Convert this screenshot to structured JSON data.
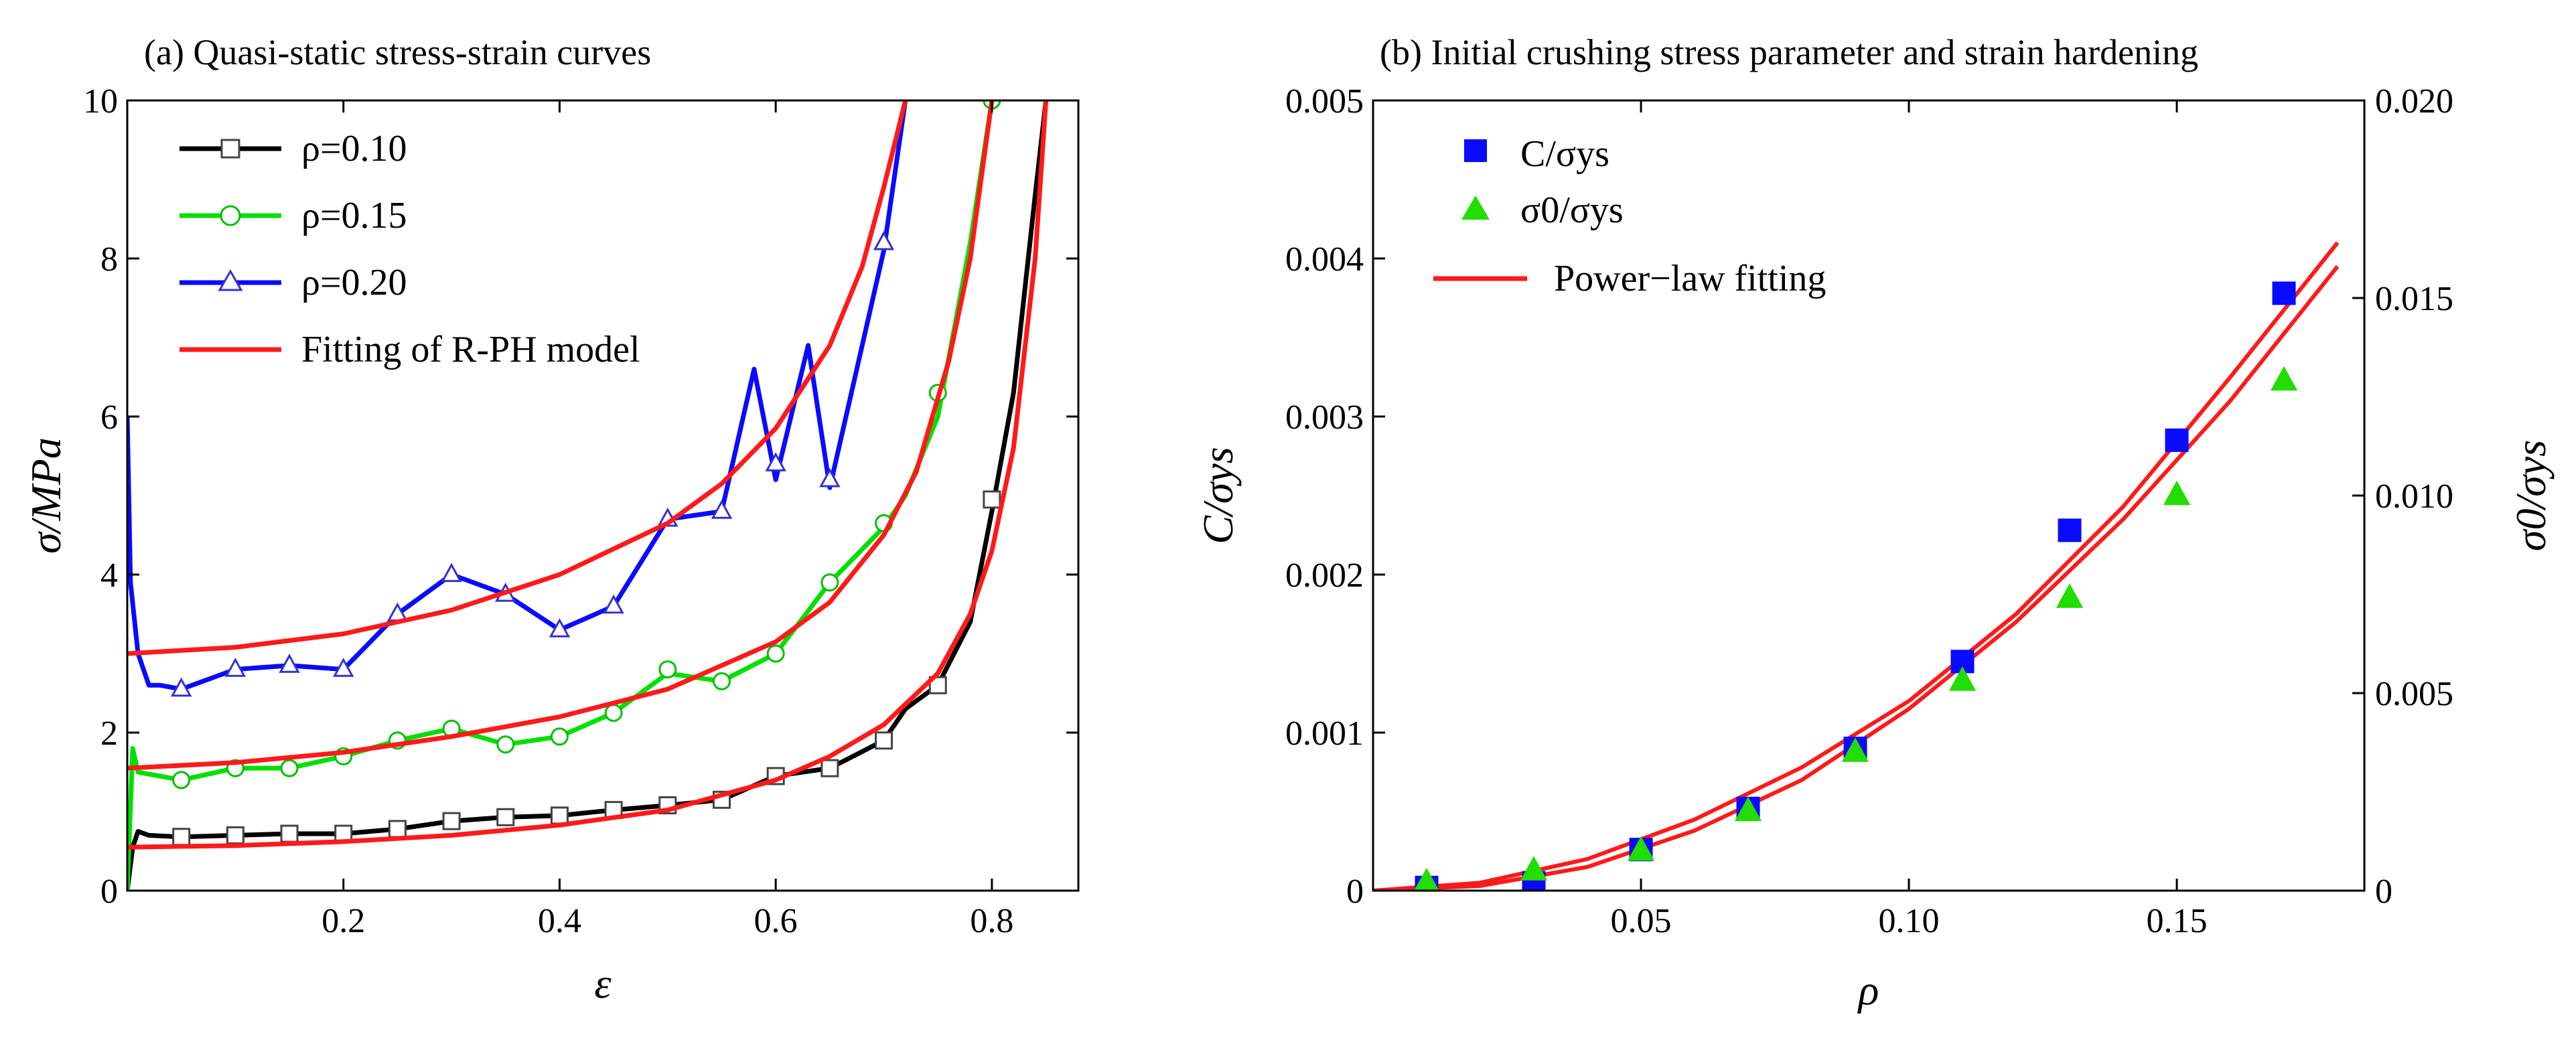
{
  "chart_data": [
    {
      "id": "a",
      "type": "line",
      "title": "(a) Quasi-static stress-strain curves",
      "xlabel": "ε",
      "ylabel": "σ/MPa",
      "xlim": [
        0,
        0.88
      ],
      "ylim": [
        0,
        10
      ],
      "xticks": [
        {
          "value": 0.2,
          "label": "0.2"
        },
        {
          "value": 0.4,
          "label": "0.4"
        },
        {
          "value": 0.6,
          "label": "0.6"
        },
        {
          "value": 0.8,
          "label": "0.8"
        }
      ],
      "yticks": [
        {
          "value": 0,
          "label": "0"
        },
        {
          "value": 2,
          "label": "2"
        },
        {
          "value": 4,
          "label": "4"
        },
        {
          "value": 6,
          "label": "6"
        },
        {
          "value": 8,
          "label": "8"
        },
        {
          "value": 10,
          "label": "10"
        }
      ],
      "legend_position": "top-left",
      "series": [
        {
          "name": "ρ=0.10",
          "color": "#000000",
          "marker": "square",
          "x": [
            0.0,
            0.005,
            0.01,
            0.02,
            0.05,
            0.1,
            0.15,
            0.2,
            0.25,
            0.3,
            0.35,
            0.4,
            0.45,
            0.5,
            0.55,
            0.6,
            0.65,
            0.7,
            0.72,
            0.75,
            0.78,
            0.8,
            0.82,
            0.84,
            0.85
          ],
          "y": [
            0.0,
            0.55,
            0.75,
            0.7,
            0.68,
            0.7,
            0.72,
            0.72,
            0.78,
            0.88,
            0.93,
            0.95,
            1.02,
            1.08,
            1.15,
            1.45,
            1.55,
            1.9,
            2.3,
            2.6,
            3.4,
            4.8,
            6.3,
            8.8,
            10.0
          ],
          "markers_x": [
            0.05,
            0.1,
            0.15,
            0.2,
            0.25,
            0.3,
            0.35,
            0.4,
            0.45,
            0.5,
            0.55,
            0.6,
            0.65,
            0.7,
            0.75,
            0.8
          ],
          "markers_y": [
            0.68,
            0.7,
            0.72,
            0.72,
            0.78,
            0.88,
            0.93,
            0.95,
            1.02,
            1.08,
            1.15,
            1.45,
            1.55,
            1.9,
            2.6,
            4.95
          ]
        },
        {
          "name": "ρ=0.15",
          "color": "#00e000",
          "marker": "circle",
          "x": [
            0.0,
            0.005,
            0.01,
            0.03,
            0.05,
            0.1,
            0.15,
            0.2,
            0.25,
            0.3,
            0.35,
            0.4,
            0.45,
            0.5,
            0.55,
            0.6,
            0.65,
            0.7,
            0.72,
            0.75,
            0.78,
            0.8
          ],
          "y": [
            0.0,
            1.8,
            1.5,
            1.45,
            1.4,
            1.55,
            1.55,
            1.7,
            1.9,
            2.05,
            1.85,
            1.95,
            2.25,
            2.75,
            2.65,
            3.0,
            3.9,
            4.6,
            5.0,
            6.0,
            8.2,
            10.0
          ],
          "markers_x": [
            0.05,
            0.1,
            0.15,
            0.2,
            0.25,
            0.3,
            0.35,
            0.4,
            0.45,
            0.5,
            0.55,
            0.6,
            0.65,
            0.7,
            0.75,
            0.8
          ],
          "markers_y": [
            1.4,
            1.55,
            1.55,
            1.7,
            1.9,
            2.05,
            1.85,
            1.95,
            2.25,
            2.8,
            2.65,
            3.0,
            3.9,
            4.65,
            6.3,
            10.0
          ]
        },
        {
          "name": "ρ=0.20",
          "color": "#0a0aff",
          "marker": "triangle",
          "x": [
            0.0,
            0.003,
            0.01,
            0.02,
            0.03,
            0.05,
            0.1,
            0.15,
            0.2,
            0.25,
            0.3,
            0.35,
            0.4,
            0.45,
            0.5,
            0.55,
            0.58,
            0.6,
            0.63,
            0.65,
            0.7,
            0.72
          ],
          "y": [
            6.0,
            3.9,
            3.0,
            2.6,
            2.6,
            2.55,
            2.8,
            2.85,
            2.8,
            3.5,
            4.0,
            3.75,
            3.3,
            3.6,
            4.7,
            4.8,
            6.6,
            5.2,
            6.9,
            5.1,
            8.1,
            10.0
          ],
          "markers_x": [
            0.05,
            0.1,
            0.15,
            0.2,
            0.25,
            0.3,
            0.35,
            0.4,
            0.45,
            0.5,
            0.55,
            0.6,
            0.65,
            0.7
          ],
          "markers_y": [
            2.55,
            2.8,
            2.85,
            2.8,
            3.5,
            4.0,
            3.75,
            3.3,
            3.6,
            4.7,
            4.8,
            5.4,
            5.2,
            8.2
          ]
        },
        {
          "name": "Fitting of R-PH model",
          "color": "#ff1a1a",
          "marker": "none",
          "fits": [
            {
              "x": [
                0.0,
                0.1,
                0.2,
                0.3,
                0.4,
                0.5,
                0.6,
                0.65,
                0.7,
                0.75,
                0.78,
                0.8,
                0.82,
                0.84,
                0.85
              ],
              "y": [
                0.55,
                0.57,
                0.62,
                0.7,
                0.83,
                1.02,
                1.4,
                1.7,
                2.1,
                2.75,
                3.5,
                4.3,
                5.6,
                8.0,
                10.0
              ]
            },
            {
              "x": [
                0.0,
                0.1,
                0.2,
                0.3,
                0.4,
                0.5,
                0.6,
                0.65,
                0.7,
                0.73,
                0.76,
                0.78,
                0.8
              ],
              "y": [
                1.55,
                1.62,
                1.75,
                1.95,
                2.2,
                2.55,
                3.15,
                3.65,
                4.5,
                5.3,
                6.7,
                8.0,
                10.0
              ]
            },
            {
              "x": [
                0.0,
                0.1,
                0.2,
                0.3,
                0.4,
                0.5,
                0.55,
                0.6,
                0.65,
                0.68,
                0.7,
                0.72
              ],
              "y": [
                3.0,
                3.08,
                3.25,
                3.55,
                4.0,
                4.65,
                5.15,
                5.85,
                6.9,
                7.9,
                8.9,
                10.0
              ]
            }
          ]
        }
      ]
    },
    {
      "id": "b",
      "type": "scatter",
      "title": "(b) Initial crushing stress parameter and strain hardening",
      "xlabel": "ρ",
      "ylabel_left": "C/σys",
      "ylabel_right": "σ0/σys",
      "xlim": [
        0,
        0.185
      ],
      "ylim_left": [
        0,
        0.005
      ],
      "ylim_right": [
        0,
        0.02
      ],
      "xticks": [
        {
          "value": 0.05,
          "label": "0.05"
        },
        {
          "value": 0.1,
          "label": "0.10"
        },
        {
          "value": 0.15,
          "label": "0.15"
        }
      ],
      "yticks_left": [
        {
          "value": 0,
          "label": "0"
        },
        {
          "value": 0.001,
          "label": "0.001"
        },
        {
          "value": 0.002,
          "label": "0.002"
        },
        {
          "value": 0.003,
          "label": "0.003"
        },
        {
          "value": 0.004,
          "label": "0.004"
        },
        {
          "value": 0.005,
          "label": "0.005"
        }
      ],
      "yticks_right": [
        {
          "value": 0,
          "label": "0"
        },
        {
          "value": 0.005,
          "label": "0.005"
        },
        {
          "value": 0.01,
          "label": "0.010"
        },
        {
          "value": 0.015,
          "label": "0.015"
        },
        {
          "value": 0.02,
          "label": "0.020"
        }
      ],
      "legend_position": "top-left",
      "series": [
        {
          "name": "C/σys",
          "color": "#0a0aff",
          "marker": "square",
          "axis": "left",
          "x": [
            0.01,
            0.03,
            0.05,
            0.07,
            0.09,
            0.11,
            0.13,
            0.15,
            0.17
          ],
          "y": [
            2e-05,
            5e-05,
            0.00026,
            0.00052,
            0.0009,
            0.00145,
            0.00228,
            0.00285,
            0.00378
          ]
        },
        {
          "name": "σ0/σys",
          "color": "#22dd00",
          "marker": "triangle",
          "axis": "right",
          "x": [
            0.01,
            0.03,
            0.05,
            0.07,
            0.09,
            0.11,
            0.13,
            0.15,
            0.17
          ],
          "y": [
            0.0002,
            0.0005,
            0.001,
            0.002,
            0.0035,
            0.0053,
            0.0074,
            0.01,
            0.0129
          ]
        },
        {
          "name": "Power−law fitting",
          "color": "#ff1a1a",
          "marker": "none",
          "fits": [
            {
              "axis": "left",
              "x": [
                0.0,
                0.02,
                0.04,
                0.06,
                0.08,
                0.1,
                0.12,
                0.14,
                0.16,
                0.18
              ],
              "y": [
                0.0,
                3e-05,
                0.00015,
                0.00038,
                0.0007,
                0.00115,
                0.0017,
                0.00235,
                0.0031,
                0.00395
              ]
            },
            {
              "axis": "left",
              "x": [
                0.0,
                0.02,
                0.04,
                0.06,
                0.08,
                0.1,
                0.12,
                0.14,
                0.16,
                0.18
              ],
              "y": [
                0.0,
                5e-05,
                0.0002,
                0.00045,
                0.00078,
                0.0012,
                0.00175,
                0.00243,
                0.00325,
                0.0041
              ]
            }
          ]
        }
      ]
    }
  ]
}
